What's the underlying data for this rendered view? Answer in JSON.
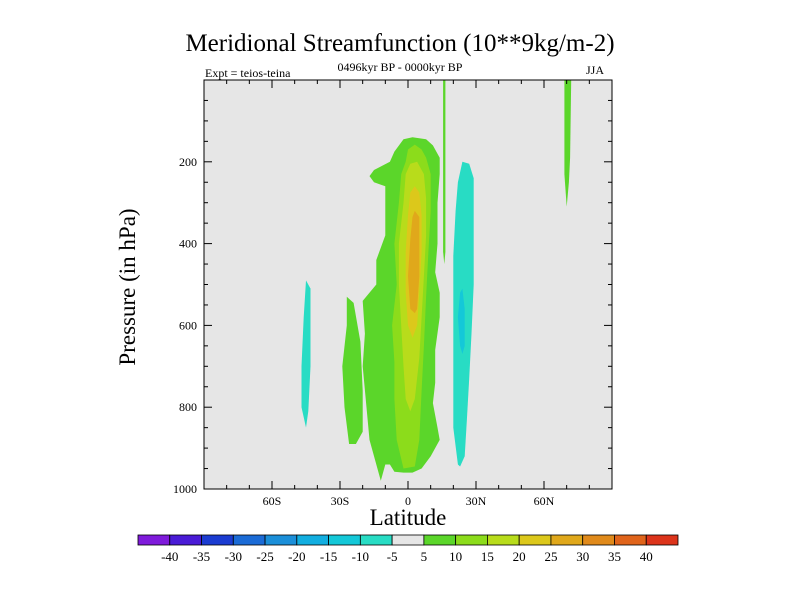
{
  "chart_data": {
    "type": "heatmap",
    "title": "Meridional Streamfunction (10**9kg/m-2)",
    "subtitle": "0496kyr BP - 0000kyr BP",
    "experiment_label": "Expt = teios-teina",
    "season": "JJA",
    "xlabel": "Latitude",
    "ylabel": "Pressure (in hPa)",
    "xlim": [
      -90,
      90
    ],
    "ylim": [
      1000,
      0
    ],
    "x_ticks": [
      {
        "value": -60,
        "label": "60S"
      },
      {
        "value": -30,
        "label": "30S"
      },
      {
        "value": 0,
        "label": "0"
      },
      {
        "value": 30,
        "label": "30N"
      },
      {
        "value": 60,
        "label": "60N"
      }
    ],
    "y_ticks": [
      {
        "value": 200,
        "label": "200"
      },
      {
        "value": 400,
        "label": "400"
      },
      {
        "value": 600,
        "label": "600"
      },
      {
        "value": 800,
        "label": "800"
      },
      {
        "value": 1000,
        "label": "1000"
      }
    ],
    "background_color": "#e6e6e6",
    "colorbar": {
      "levels": [
        -40,
        -35,
        -30,
        -25,
        -20,
        -15,
        -10,
        -5,
        5,
        10,
        15,
        20,
        25,
        30,
        35,
        40
      ],
      "colors": [
        "#7f1bdb",
        "#4a1bd6",
        "#1b3cd1",
        "#1b6bd6",
        "#1b8fd9",
        "#12aee0",
        "#14c8d8",
        "#28dcc4",
        "#e6e6e6",
        "#5bd62a",
        "#8cdc1b",
        "#b8dc1b",
        "#dcc81b",
        "#e0a81b",
        "#e08a1b",
        "#e0641b",
        "#dc341b"
      ]
    },
    "contour_regions": [
      {
        "name": "green-core-envelope",
        "color": "#5bd62a",
        "points": [
          [
            -12,
            980
          ],
          [
            -17,
            880
          ],
          [
            -20,
            700
          ],
          [
            -19,
            620
          ],
          [
            -20,
            540
          ],
          [
            -14,
            500
          ],
          [
            -14,
            440
          ],
          [
            -10,
            380
          ],
          [
            -10,
            320
          ],
          [
            -10,
            260
          ],
          [
            -15,
            250
          ],
          [
            -17,
            235
          ],
          [
            -15,
            220
          ],
          [
            -8,
            200
          ],
          [
            -6,
            175
          ],
          [
            -2,
            145
          ],
          [
            2,
            140
          ],
          [
            8,
            145
          ],
          [
            11,
            160
          ],
          [
            14,
            190
          ],
          [
            14,
            230
          ],
          [
            13,
            300
          ],
          [
            13,
            400
          ],
          [
            12,
            470
          ],
          [
            14,
            520
          ],
          [
            14,
            580
          ],
          [
            12,
            660
          ],
          [
            12,
            740
          ],
          [
            11,
            790
          ],
          [
            13,
            850
          ],
          [
            14,
            880
          ],
          [
            10,
            920
          ],
          [
            6,
            950
          ],
          [
            2,
            960
          ],
          [
            -2,
            960
          ],
          [
            -6,
            958
          ],
          [
            -8,
            940
          ],
          [
            -10,
            940
          ]
        ]
      },
      {
        "name": "green-lower-left-lobe",
        "color": "#5bd62a",
        "points": [
          [
            -26,
            890
          ],
          [
            -28,
            800
          ],
          [
            -29,
            700
          ],
          [
            -27,
            600
          ],
          [
            -27,
            530
          ],
          [
            -24,
            545
          ],
          [
            -21,
            640
          ],
          [
            -20,
            760
          ],
          [
            -20,
            860
          ],
          [
            -23,
            890
          ]
        ]
      },
      {
        "name": "green-column-30n",
        "color": "#5bd62a",
        "points": [
          [
            15.5,
            0
          ],
          [
            16.5,
            0
          ],
          [
            16.5,
            420
          ],
          [
            16,
            450
          ],
          [
            15.5,
            420
          ]
        ]
      },
      {
        "name": "green-column-70n",
        "color": "#5bd62a",
        "points": [
          [
            69,
            0
          ],
          [
            72,
            0
          ],
          [
            71.5,
            190
          ],
          [
            71,
            250
          ],
          [
            70,
            310
          ],
          [
            69,
            230
          ]
        ]
      },
      {
        "name": "light-green-column",
        "color": "#8cdc1b",
        "points": [
          [
            -2,
            950
          ],
          [
            -5,
            880
          ],
          [
            -6,
            780
          ],
          [
            -6,
            690
          ],
          [
            -7,
            600
          ],
          [
            -5,
            500
          ],
          [
            -6,
            400
          ],
          [
            -4,
            300
          ],
          [
            -3,
            230
          ],
          [
            -1,
            200
          ],
          [
            0,
            170
          ],
          [
            3,
            158
          ],
          [
            6,
            170
          ],
          [
            8,
            190
          ],
          [
            10,
            230
          ],
          [
            10,
            320
          ],
          [
            9,
            420
          ],
          [
            8,
            530
          ],
          [
            7,
            650
          ],
          [
            6,
            760
          ],
          [
            5,
            880
          ],
          [
            3,
            945
          ]
        ]
      },
      {
        "name": "yellow-column",
        "color": "#b8dc1b",
        "points": [
          [
            -1,
            780
          ],
          [
            -2,
            700
          ],
          [
            -3,
            600
          ],
          [
            -4,
            500
          ],
          [
            -4,
            400
          ],
          [
            -2,
            300
          ],
          [
            -1,
            230
          ],
          [
            1,
            205
          ],
          [
            4,
            200
          ],
          [
            7,
            230
          ],
          [
            8,
            290
          ],
          [
            8,
            380
          ],
          [
            7,
            480
          ],
          [
            6,
            580
          ],
          [
            5,
            680
          ],
          [
            3,
            780
          ],
          [
            1,
            810
          ]
        ]
      },
      {
        "name": "gold-column",
        "color": "#dcc81b",
        "points": [
          [
            0,
            600
          ],
          [
            -1,
            520
          ],
          [
            -1,
            420
          ],
          [
            0,
            330
          ],
          [
            1,
            275
          ],
          [
            3,
            260
          ],
          [
            5,
            275
          ],
          [
            6,
            330
          ],
          [
            6,
            420
          ],
          [
            5,
            520
          ],
          [
            4,
            600
          ],
          [
            2,
            630
          ]
        ]
      },
      {
        "name": "orange-core",
        "color": "#e0a81b",
        "points": [
          [
            1,
            560
          ],
          [
            0,
            480
          ],
          [
            1,
            390
          ],
          [
            2,
            335
          ],
          [
            3,
            320
          ],
          [
            5,
            335
          ],
          [
            5,
            400
          ],
          [
            5,
            480
          ],
          [
            4,
            560
          ],
          [
            3,
            570
          ]
        ]
      },
      {
        "name": "cyan-right-column",
        "color": "#28dcc4",
        "points": [
          [
            22,
            940
          ],
          [
            20,
            850
          ],
          [
            20,
            700
          ],
          [
            20,
            560
          ],
          [
            20,
            430
          ],
          [
            21,
            320
          ],
          [
            22,
            250
          ],
          [
            24,
            200
          ],
          [
            27,
            205
          ],
          [
            29,
            240
          ],
          [
            29,
            360
          ],
          [
            29,
            500
          ],
          [
            28,
            620
          ],
          [
            27,
            730
          ],
          [
            26,
            830
          ],
          [
            25,
            920
          ],
          [
            23,
            945
          ]
        ]
      },
      {
        "name": "cyan-inner-strip",
        "color": "#14c8d8",
        "points": [
          [
            23,
            650
          ],
          [
            22,
            580
          ],
          [
            23,
            520
          ],
          [
            24,
            510
          ],
          [
            25,
            560
          ],
          [
            25,
            650
          ],
          [
            24,
            670
          ]
        ]
      },
      {
        "name": "cyan-left-column",
        "color": "#28dcc4",
        "points": [
          [
            -45,
            850
          ],
          [
            -47,
            800
          ],
          [
            -47,
            700
          ],
          [
            -46,
            580
          ],
          [
            -45,
            490
          ],
          [
            -43,
            510
          ],
          [
            -43,
            600
          ],
          [
            -43,
            700
          ],
          [
            -44,
            810
          ]
        ]
      }
    ]
  }
}
